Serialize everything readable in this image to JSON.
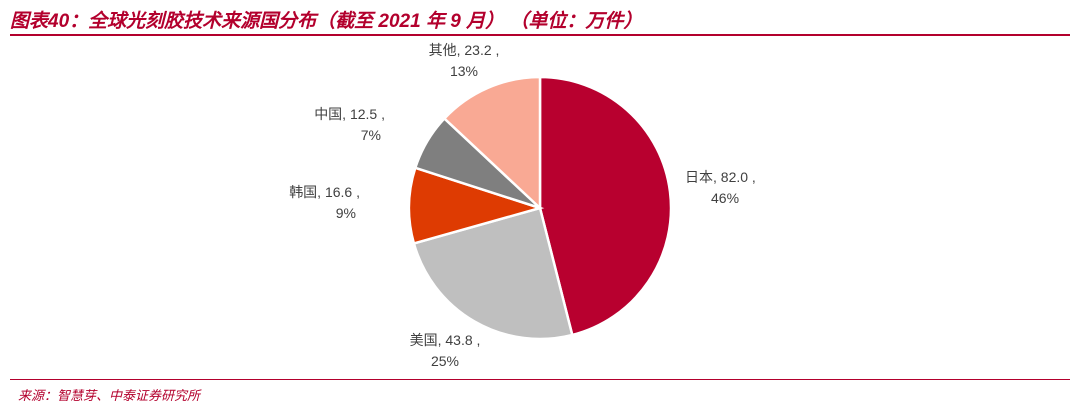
{
  "header": {
    "title": "图表40：全球光刻胶技术来源国分布（截至 2021 年 9 月）  （单位：万件）"
  },
  "footer": {
    "source": "来源：智慧芽、中泰证券研究所"
  },
  "chart_data": {
    "type": "pie",
    "title": "",
    "slices": [
      {
        "name": "日本",
        "value": 82.0,
        "percent": "46%",
        "color": "#b8002f",
        "value_label": "日本, 82.0 ,",
        "percent_label": "46%"
      },
      {
        "name": "美国",
        "value": 43.8,
        "percent": "25%",
        "color": "#bfbfbf",
        "value_label": "美国, 43.8 ,",
        "percent_label": "25%"
      },
      {
        "name": "韩国",
        "value": 16.6,
        "percent": "9%",
        "color": "#de3b02",
        "value_label": "韩国, 16.6 ,",
        "percent_label": "9%"
      },
      {
        "name": "中国",
        "value": 12.5,
        "percent": "7%",
        "color": "#7f7f7f",
        "value_label": "中国, 12.5 ,",
        "percent_label": "7%"
      },
      {
        "name": "其他",
        "value": 23.2,
        "percent": "13%",
        "color": "#f9a994",
        "value_label": "其他, 23.2 ,",
        "percent_label": "13%"
      }
    ]
  }
}
